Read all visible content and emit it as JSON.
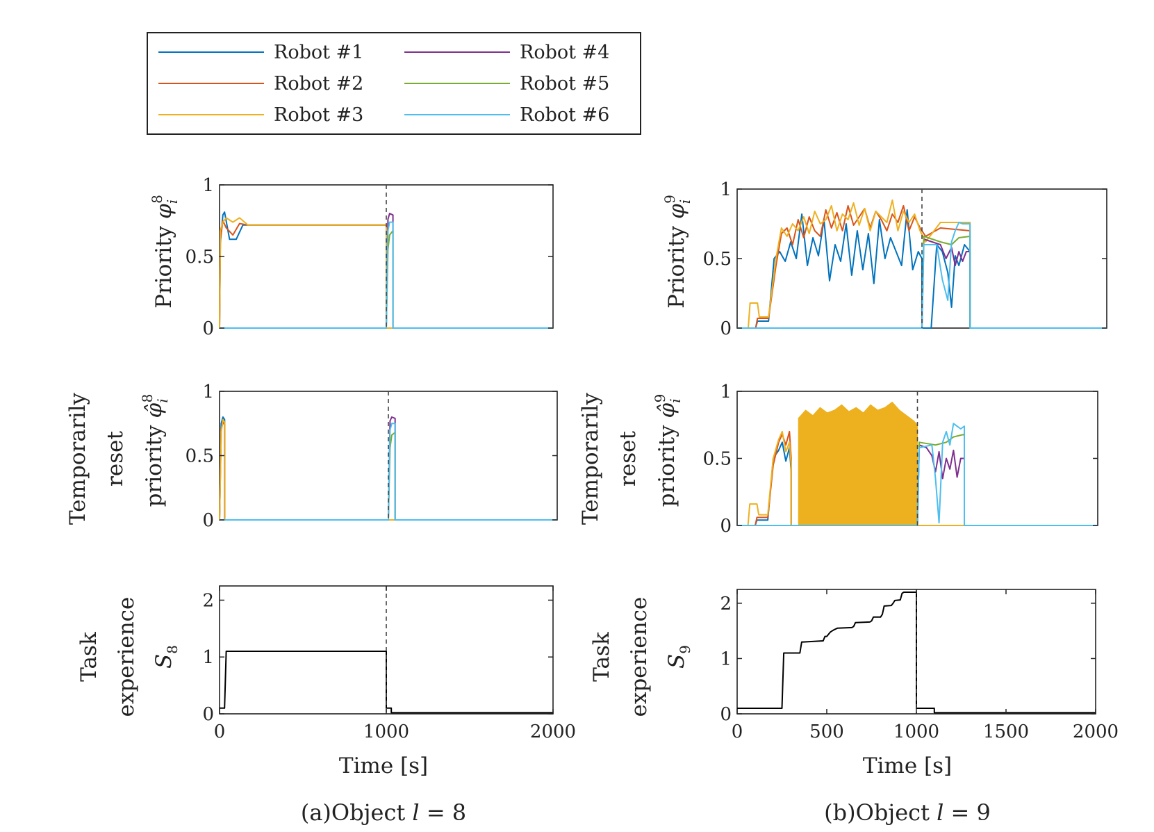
{
  "legend": {
    "entries": [
      {
        "label": "Robot #1",
        "color": "#0072BD"
      },
      {
        "label": "Robot #2",
        "color": "#D95319"
      },
      {
        "label": "Robot #3",
        "color": "#EDB120"
      },
      {
        "label": "Robot #4",
        "color": "#7E2F8E"
      },
      {
        "label": "Robot #5",
        "color": "#77AC30"
      },
      {
        "label": "Robot #6",
        "color": "#4DBEEE"
      }
    ]
  },
  "captions": {
    "a_prefix": "(a)Object ",
    "a_var": "l",
    "a_value": " = 8",
    "b_prefix": "(b)Object ",
    "b_var": "l",
    "b_value": " = 9"
  },
  "labels": {
    "priority": "Priority",
    "temporarily": "Temporarily",
    "reset": "reset",
    "priority_lc": "priority",
    "task": "Task",
    "experience": "experience",
    "time": "Time [s]",
    "phi": "φ",
    "phihat": "φ̂",
    "sub_i": "i",
    "S": "S",
    "sup8": "8",
    "sup9": "9"
  },
  "chart_data": [
    {
      "id": "a-priority",
      "type": "line",
      "ylabel": "Priority φ_i^8",
      "xlim": [
        0,
        2000
      ],
      "ylim": [
        0,
        1
      ],
      "yticks": [
        "0",
        "0.5",
        "1"
      ],
      "xticks": [],
      "reset_time": 1000,
      "series": [
        {
          "name": "Robot #1",
          "x": [
            0,
            5,
            20,
            30,
            60,
            100,
            140,
            170,
            995,
            1000,
            1000,
            1050
          ],
          "y": [
            0,
            0.6,
            0.79,
            0.81,
            0.62,
            0.62,
            0.72,
            0.72,
            0.72,
            0.72,
            0,
            0
          ]
        },
        {
          "name": "Robot #2",
          "x": [
            0,
            5,
            20,
            40,
            80,
            120,
            170,
            995,
            1000,
            1000,
            1050
          ],
          "y": [
            0,
            0.62,
            0.75,
            0.7,
            0.65,
            0.73,
            0.72,
            0.72,
            0.72,
            0,
            0
          ]
        },
        {
          "name": "Robot #3",
          "x": [
            0,
            5,
            20,
            40,
            80,
            120,
            170,
            995,
            1000,
            1000,
            1050
          ],
          "y": [
            0,
            0.68,
            0.74,
            0.77,
            0.74,
            0.77,
            0.72,
            0.72,
            0.72,
            0,
            0
          ]
        },
        {
          "name": "Robot #4",
          "x": [
            0,
            1000,
            1010,
            1020,
            1040,
            1040,
            2000
          ],
          "y": [
            0,
            0,
            0.76,
            0.8,
            0.79,
            0,
            0
          ]
        },
        {
          "name": "Robot #5",
          "x": [
            0,
            1000,
            1010,
            1020,
            1040,
            1040,
            2000
          ],
          "y": [
            0,
            0,
            0.55,
            0.65,
            0.68,
            0,
            0
          ]
        },
        {
          "name": "Robot #6",
          "x": [
            0,
            1000,
            1010,
            1020,
            1040,
            1040,
            2000
          ],
          "y": [
            0,
            0,
            0.68,
            0.74,
            0.74,
            0,
            0
          ]
        }
      ]
    },
    {
      "id": "a-reset",
      "type": "line",
      "ylabel": "Temporarily reset priority φ̂_i^8",
      "xlim": [
        0,
        2000
      ],
      "ylim": [
        0,
        1
      ],
      "yticks": [
        "0",
        "0.5",
        "1"
      ],
      "xticks": [],
      "reset_time": 1000,
      "series": [
        {
          "name": "Robot #1",
          "x": [
            0,
            10,
            20,
            30,
            30,
            2000
          ],
          "y": [
            0,
            0.75,
            0.8,
            0.78,
            0,
            0
          ]
        },
        {
          "name": "Robot #2",
          "x": [
            0,
            10,
            20,
            30,
            30,
            2000
          ],
          "y": [
            0,
            0.7,
            0.76,
            0.74,
            0,
            0
          ]
        },
        {
          "name": "Robot #3",
          "x": [
            0,
            10,
            20,
            30,
            30,
            2000
          ],
          "y": [
            0,
            0.68,
            0.78,
            0.76,
            0,
            0
          ]
        },
        {
          "name": "Robot #4",
          "x": [
            0,
            1000,
            1010,
            1020,
            1040,
            1040,
            2000
          ],
          "y": [
            0,
            0,
            0.77,
            0.8,
            0.79,
            0,
            0
          ]
        },
        {
          "name": "Robot #5",
          "x": [
            0,
            1000,
            1010,
            1020,
            1040,
            1040,
            2000
          ],
          "y": [
            0,
            0,
            0.56,
            0.66,
            0.68,
            0,
            0
          ]
        },
        {
          "name": "Robot #6",
          "x": [
            0,
            1000,
            1010,
            1020,
            1040,
            1040,
            2000
          ],
          "y": [
            0,
            0,
            0.7,
            0.75,
            0.75,
            0,
            0
          ]
        }
      ]
    },
    {
      "id": "a-experience",
      "type": "line",
      "ylabel": "Task experience S_8",
      "xlabel": "Time [s]",
      "xlim": [
        0,
        2000
      ],
      "ylim": [
        0,
        2.25
      ],
      "yticks": [
        "0",
        "1",
        "2"
      ],
      "xticks": [
        "0",
        "1000",
        "2000"
      ],
      "xtick_values": [
        0,
        1000,
        2000
      ],
      "reset_time": 1000,
      "series": [
        {
          "name": "S_8",
          "x": [
            0,
            30,
            40,
            1000,
            1000,
            1030,
            1030,
            2000
          ],
          "y": [
            0.1,
            0.1,
            1.1,
            1.1,
            0.1,
            0.1,
            0.02,
            0.02
          ]
        }
      ]
    },
    {
      "id": "b-priority",
      "type": "line",
      "ylabel": "Priority φ_i^9",
      "xlim": [
        0,
        2000
      ],
      "ylim": [
        0,
        1
      ],
      "yticks": [
        "0",
        "0.5",
        "1"
      ],
      "xticks": [],
      "reset_time": 1000,
      "series": [
        {
          "name": "Robot #1",
          "x": [
            0,
            100,
            110,
            170,
            200,
            230,
            260,
            290,
            320,
            350,
            380,
            410,
            440,
            470,
            500,
            530,
            560,
            590,
            620,
            650,
            680,
            710,
            740,
            770,
            800,
            830,
            860,
            890,
            920,
            950,
            980,
            1000,
            1000,
            1050,
            1080,
            1110,
            1140,
            1160,
            1180,
            1200,
            1230,
            1260,
            1260,
            2000
          ],
          "y": [
            0,
            0,
            0.05,
            0.05,
            0.5,
            0.55,
            0.48,
            0.62,
            0.5,
            0.82,
            0.45,
            0.65,
            0.52,
            0.78,
            0.34,
            0.6,
            0.48,
            0.75,
            0.38,
            0.7,
            0.42,
            0.68,
            0.32,
            0.78,
            0.5,
            0.65,
            0.55,
            0.45,
            0.85,
            0.42,
            0.55,
            0.5,
            0,
            0,
            0.6,
            0.55,
            0.4,
            0.15,
            0.52,
            0.45,
            0.6,
            0.55,
            0,
            0
          ]
        },
        {
          "name": "Robot #2",
          "x": [
            0,
            100,
            110,
            170,
            210,
            240,
            270,
            300,
            330,
            360,
            390,
            420,
            450,
            480,
            510,
            540,
            570,
            600,
            630,
            660,
            690,
            720,
            750,
            780,
            810,
            840,
            870,
            900,
            930,
            960,
            990,
            1020,
            1100,
            1260,
            1260,
            2000
          ],
          "y": [
            0,
            0,
            0.07,
            0.07,
            0.45,
            0.68,
            0.72,
            0.6,
            0.78,
            0.65,
            0.8,
            0.7,
            0.66,
            0.85,
            0.72,
            0.83,
            0.7,
            0.88,
            0.74,
            0.8,
            0.86,
            0.72,
            0.84,
            0.78,
            0.7,
            0.82,
            0.76,
            0.88,
            0.7,
            0.8,
            0.72,
            0.66,
            0.72,
            0.7,
            0,
            0
          ]
        },
        {
          "name": "Robot #3",
          "x": [
            0,
            60,
            70,
            110,
            120,
            170,
            210,
            240,
            270,
            300,
            330,
            360,
            390,
            420,
            450,
            480,
            510,
            540,
            570,
            600,
            630,
            660,
            690,
            720,
            750,
            780,
            810,
            840,
            870,
            900,
            930,
            960,
            990,
            1020,
            1100,
            1260,
            1260,
            2000
          ],
          "y": [
            0,
            0,
            0.18,
            0.18,
            0.08,
            0.08,
            0.5,
            0.72,
            0.66,
            0.75,
            0.7,
            0.8,
            0.68,
            0.84,
            0.75,
            0.78,
            0.88,
            0.7,
            0.82,
            0.78,
            0.9,
            0.74,
            0.86,
            0.7,
            0.84,
            0.8,
            0.76,
            0.92,
            0.7,
            0.84,
            0.76,
            0.82,
            0.7,
            0.62,
            0.76,
            0.76,
            0,
            0
          ]
        },
        {
          "name": "Robot #4",
          "x": [
            0,
            1000,
            1010,
            1100,
            1130,
            1160,
            1180,
            1200,
            1220,
            1240,
            1260,
            1260,
            2000
          ],
          "y": [
            0,
            0,
            0.64,
            0.6,
            0.5,
            0.58,
            0.45,
            0.55,
            0.48,
            0.55,
            0.55,
            0,
            0
          ]
        },
        {
          "name": "Robot #5",
          "x": [
            0,
            1000,
            1010,
            1100,
            1160,
            1200,
            1260,
            1260,
            2000
          ],
          "y": [
            0,
            0,
            0.66,
            0.62,
            0.6,
            0.65,
            0.66,
            0,
            0
          ]
        },
        {
          "name": "Robot #6",
          "x": [
            0,
            1000,
            1010,
            1080,
            1110,
            1140,
            1160,
            1180,
            1200,
            1220,
            1260,
            1260,
            2000
          ],
          "y": [
            0,
            0,
            0.6,
            0.6,
            0.35,
            0.2,
            0.62,
            0.7,
            0.76,
            0.75,
            0.75,
            0,
            0
          ]
        }
      ]
    },
    {
      "id": "b-reset",
      "type": "line",
      "ylabel": "Temporarily reset priority φ̂_i^9",
      "xlim": [
        0,
        2000
      ],
      "ylim": [
        0,
        1
      ],
      "yticks": [
        "0",
        "0.5",
        "1"
      ],
      "xticks": [],
      "reset_time": 1000,
      "dense_band": {
        "color": "#EDB120",
        "x_start": 340,
        "x_end": 1000,
        "x": [
          340,
          380,
          420,
          460,
          500,
          540,
          580,
          620,
          660,
          700,
          740,
          780,
          820,
          860,
          900,
          940,
          980,
          1000
        ],
        "y": [
          0.8,
          0.86,
          0.82,
          0.88,
          0.84,
          0.86,
          0.9,
          0.85,
          0.88,
          0.84,
          0.9,
          0.86,
          0.88,
          0.92,
          0.86,
          0.82,
          0.78,
          0.75
        ]
      },
      "series": [
        {
          "name": "Robot #1",
          "x": [
            0,
            100,
            110,
            170,
            200,
            230,
            250,
            270,
            290,
            300,
            300,
            2000
          ],
          "y": [
            0,
            0,
            0.04,
            0.04,
            0.5,
            0.56,
            0.62,
            0.48,
            0.58,
            0.4,
            0,
            0
          ]
        },
        {
          "name": "Robot #2",
          "x": [
            0,
            100,
            110,
            170,
            200,
            230,
            250,
            270,
            290,
            300,
            300,
            2000
          ],
          "y": [
            0,
            0,
            0.06,
            0.06,
            0.45,
            0.62,
            0.68,
            0.6,
            0.7,
            0.5,
            0,
            0
          ]
        },
        {
          "name": "Robot #3",
          "x": [
            0,
            60,
            70,
            110,
            120,
            170,
            200,
            230,
            250,
            270,
            290,
            300,
            300,
            2000
          ],
          "y": [
            0,
            0,
            0.16,
            0.16,
            0.08,
            0.08,
            0.5,
            0.64,
            0.7,
            0.55,
            0.62,
            0.45,
            0,
            0
          ]
        },
        {
          "name": "Robot #4",
          "x": [
            0,
            1000,
            1010,
            1050,
            1080,
            1100,
            1120,
            1140,
            1160,
            1180,
            1200,
            1220,
            1240,
            1260,
            1260,
            2000
          ],
          "y": [
            0,
            0,
            0.6,
            0.58,
            0.52,
            0.4,
            0.55,
            0.35,
            0.5,
            0.42,
            0.56,
            0.36,
            0.5,
            0.5,
            0,
            0
          ]
        },
        {
          "name": "Robot #5",
          "x": [
            0,
            1000,
            1010,
            1100,
            1160,
            1200,
            1260,
            1260,
            2000
          ],
          "y": [
            0,
            0,
            0.62,
            0.6,
            0.62,
            0.66,
            0.68,
            0,
            0
          ]
        },
        {
          "name": "Robot #6",
          "x": [
            0,
            1000,
            1010,
            1080,
            1100,
            1120,
            1140,
            1160,
            1180,
            1200,
            1220,
            1240,
            1260,
            1260,
            2000
          ],
          "y": [
            0,
            0,
            0.58,
            0.6,
            0.35,
            0.02,
            0.62,
            0.7,
            0.6,
            0.76,
            0.74,
            0.72,
            0.74,
            0,
            0
          ]
        }
      ]
    },
    {
      "id": "b-experience",
      "type": "line",
      "ylabel": "Task experience S_9",
      "xlabel": "Time [s]",
      "xlim": [
        0,
        2000
      ],
      "ylim": [
        0,
        2.25
      ],
      "yticks": [
        "0",
        "1",
        "2"
      ],
      "xticks": [
        "0",
        "500",
        "1000",
        "1500",
        "2000"
      ],
      "xtick_values": [
        0,
        500,
        1000,
        1500,
        2000
      ],
      "reset_time": 1000,
      "series": [
        {
          "name": "S_9",
          "x": [
            0,
            250,
            260,
            270,
            350,
            360,
            370,
            480,
            490,
            500,
            520,
            530,
            540,
            560,
            640,
            650,
            660,
            740,
            750,
            760,
            800,
            810,
            820,
            860,
            870,
            880,
            910,
            920,
            930,
            1000,
            1000,
            1100,
            1100,
            2000
          ],
          "y": [
            0.1,
            0.1,
            1.1,
            1.1,
            1.1,
            1.3,
            1.3,
            1.32,
            1.4,
            1.4,
            1.48,
            1.5,
            1.52,
            1.55,
            1.56,
            1.58,
            1.65,
            1.66,
            1.68,
            1.75,
            1.75,
            1.8,
            1.95,
            1.96,
            2.0,
            2.05,
            2.06,
            2.18,
            2.2,
            2.2,
            0.1,
            0.1,
            0.02,
            0.02
          ]
        }
      ]
    }
  ]
}
